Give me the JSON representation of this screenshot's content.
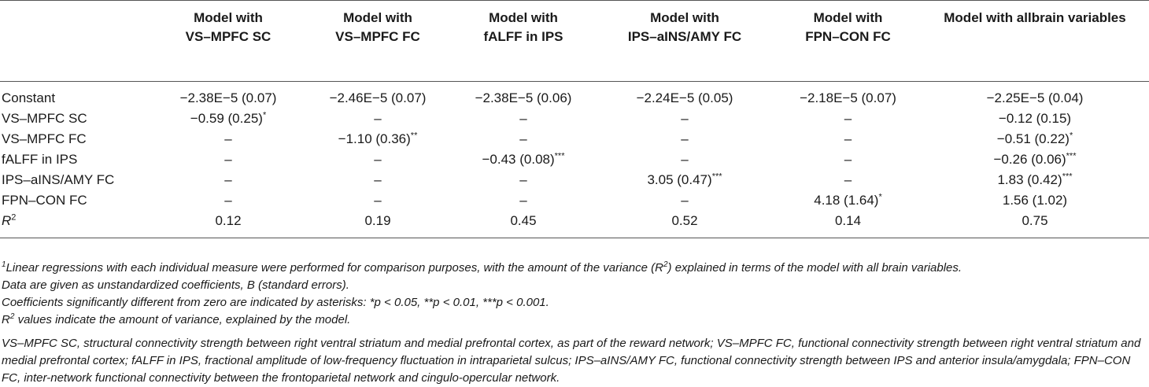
{
  "table": {
    "headers": [
      "",
      "Model with VS–MPFC SC",
      "Model with VS–MPFC FC",
      "Model with fALFF in IPS",
      "Model with IPS–aINS/AMY FC",
      "Model with FPN–CON FC",
      "Model with allbrain variables"
    ],
    "header_lines": [
      [],
      [
        "Model with",
        "VS–MPFC SC"
      ],
      [
        "Model with",
        "VS–MPFC FC"
      ],
      [
        "Model with",
        "fALFF in IPS"
      ],
      [
        "Model with",
        "IPS–aINS/AMY FC"
      ],
      [
        "Model with",
        "FPN–CON FC"
      ],
      [
        "Model with allbrain variables"
      ]
    ],
    "rows": [
      {
        "label": "Constant",
        "cells": [
          {
            "value": "−2.38E−5 (0.07)",
            "sig": ""
          },
          {
            "value": "−2.46E−5 (0.07)",
            "sig": ""
          },
          {
            "value": "−2.38E−5 (0.06)",
            "sig": ""
          },
          {
            "value": "−2.24E−5 (0.05)",
            "sig": ""
          },
          {
            "value": "−2.18E−5 (0.07)",
            "sig": ""
          },
          {
            "value": "−2.25E−5 (0.04)",
            "sig": ""
          }
        ]
      },
      {
        "label": "VS–MPFC SC",
        "cells": [
          {
            "value": "−0.59 (0.25)",
            "sig": "*"
          },
          {
            "value": "–",
            "sig": ""
          },
          {
            "value": "–",
            "sig": ""
          },
          {
            "value": "–",
            "sig": ""
          },
          {
            "value": "–",
            "sig": ""
          },
          {
            "value": "−0.12 (0.15)",
            "sig": ""
          }
        ]
      },
      {
        "label": "VS–MPFC FC",
        "cells": [
          {
            "value": "–",
            "sig": ""
          },
          {
            "value": "−1.10 (0.36)",
            "sig": "**"
          },
          {
            "value": "–",
            "sig": ""
          },
          {
            "value": "–",
            "sig": ""
          },
          {
            "value": "–",
            "sig": ""
          },
          {
            "value": "−0.51 (0.22)",
            "sig": "*"
          }
        ]
      },
      {
        "label": "fALFF in IPS",
        "cells": [
          {
            "value": "–",
            "sig": ""
          },
          {
            "value": "–",
            "sig": ""
          },
          {
            "value": "−0.43 (0.08)",
            "sig": "***"
          },
          {
            "value": "–",
            "sig": ""
          },
          {
            "value": "–",
            "sig": ""
          },
          {
            "value": "−0.26 (0.06)",
            "sig": "***"
          }
        ]
      },
      {
        "label": "IPS–aINS/AMY FC",
        "cells": [
          {
            "value": "–",
            "sig": ""
          },
          {
            "value": "–",
            "sig": ""
          },
          {
            "value": "–",
            "sig": ""
          },
          {
            "value": "3.05 (0.47)",
            "sig": "***"
          },
          {
            "value": "–",
            "sig": ""
          },
          {
            "value": "1.83 (0.42)",
            "sig": "***"
          }
        ]
      },
      {
        "label": "FPN–CON FC",
        "cells": [
          {
            "value": "–",
            "sig": ""
          },
          {
            "value": "–",
            "sig": ""
          },
          {
            "value": "–",
            "sig": ""
          },
          {
            "value": "–",
            "sig": ""
          },
          {
            "value": "4.18 (1.64)",
            "sig": "*"
          },
          {
            "value": "1.56 (1.02)",
            "sig": ""
          }
        ]
      }
    ],
    "r2_row": {
      "label_base": "R",
      "label_sup": "2",
      "values": [
        "0.12",
        "0.19",
        "0.45",
        "0.52",
        "0.14",
        "0.75"
      ]
    }
  },
  "notes": {
    "footnote_marker": "1",
    "line1": "Linear regressions with each individual measure were performed for comparison purposes, with the amount of the variance (R",
    "line1_sup": "2",
    "line1_end": ") explained in terms of the model with all brain variables.",
    "line2": "Data are given as unstandardized coefficients, B (standard errors).",
    "line3": "Coefficients significantly different from zero are indicated by asterisks: *p < 0.05, **p < 0.01, ***p < 0.001.",
    "line4_base": "R",
    "line4_sup": "2",
    "line4_rest": " values indicate the amount of variance, explained by the model.",
    "abbreviations": "VS–MPFC SC, structural connectivity strength between right ventral striatum and medial prefrontal cortex, as part of the reward network; VS–MPFC FC, functional connectivity strength between right ventral striatum and medial prefrontal cortex; fALFF in IPS, fractional amplitude of low-frequency fluctuation in intraparietal sulcus; IPS–aINS/AMY FC, functional connectivity strength between IPS and anterior insula/amygdala; FPN–CON FC, inter-network functional connectivity between the frontoparietal network and cingulo-opercular network."
  }
}
